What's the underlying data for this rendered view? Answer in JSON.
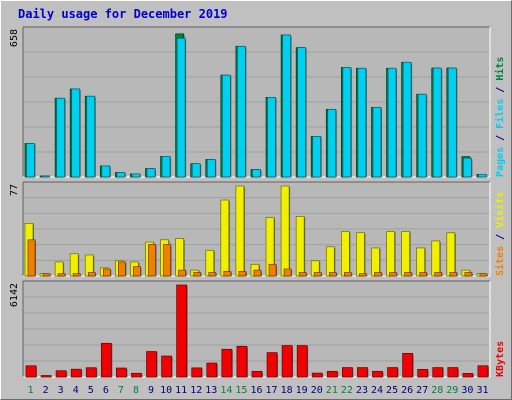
{
  "chart_data": [
    {
      "type": "bar",
      "title": "Daily usage for December 2019",
      "panel": "pages-files-hits",
      "ymax_label": "658",
      "ylim": [
        0,
        658
      ],
      "grid": true,
      "categories": [
        "1",
        "2",
        "3",
        "4",
        "5",
        "6",
        "7",
        "8",
        "9",
        "10",
        "11",
        "12",
        "13",
        "14",
        "15",
        "16",
        "17",
        "18",
        "19",
        "20",
        "21",
        "22",
        "23",
        "24",
        "25",
        "26",
        "27",
        "28",
        "29",
        "30",
        "31"
      ],
      "legend": [
        "Pages",
        "Files",
        "Hits"
      ],
      "legend_separator": " / ",
      "series": [
        {
          "name": "Hits",
          "color": "#008040",
          "values": [
            151,
            5,
            355,
            397,
            364,
            50,
            20,
            14,
            38,
            93,
            645,
            60,
            79,
            459,
            589,
            34,
            359,
            640,
            583,
            183,
            305,
            494,
            490,
            314,
            490,
            517,
            373,
            491,
            491,
            92,
            12
          ]
        },
        {
          "name": "Files",
          "color": "#00d0f0",
          "values": [
            151,
            5,
            355,
            397,
            364,
            50,
            20,
            14,
            38,
            93,
            625,
            60,
            79,
            459,
            589,
            34,
            359,
            640,
            583,
            183,
            305,
            494,
            490,
            314,
            490,
            517,
            373,
            491,
            491,
            85,
            12
          ]
        },
        {
          "name": "Pages",
          "color": "#00d0f0",
          "values": [
            0,
            0,
            0,
            0,
            0,
            0,
            0,
            0,
            0,
            0,
            0,
            0,
            0,
            0,
            0,
            0,
            0,
            0,
            0,
            0,
            0,
            0,
            0,
            0,
            0,
            0,
            0,
            0,
            0,
            0,
            0
          ]
        }
      ]
    },
    {
      "type": "bar",
      "panel": "sites-visits",
      "ymax_label": "77",
      "ylim": [
        0,
        77
      ],
      "grid": true,
      "legend": [
        "Sites",
        "Visits"
      ],
      "legend_separator": " / ",
      "series": [
        {
          "name": "Visits",
          "color": "#f0f000",
          "values": [
            45,
            2,
            12,
            19,
            18,
            7,
            13,
            12,
            29,
            31,
            32,
            5,
            22,
            65,
            77,
            10,
            50,
            77,
            51,
            13,
            25,
            38,
            37,
            24,
            38,
            38,
            24,
            30,
            37,
            5,
            2
          ]
        },
        {
          "name": "Sites",
          "color": "#f08000",
          "values": [
            31,
            2,
            2,
            2,
            3,
            6,
            12,
            8,
            27,
            27,
            5,
            3,
            3,
            4,
            4,
            5,
            10,
            6,
            3,
            3,
            3,
            3,
            2,
            3,
            3,
            3,
            3,
            3,
            3,
            3,
            2
          ]
        }
      ]
    },
    {
      "type": "bar",
      "panel": "kbytes",
      "ymax_label": "6142",
      "ylim": [
        0,
        6142
      ],
      "grid": true,
      "legend": [
        "KBytes"
      ],
      "series": [
        {
          "name": "KBytes",
          "color": "#f00000",
          "values": [
            750,
            100,
            420,
            520,
            620,
            2250,
            600,
            250,
            1700,
            1400,
            6142,
            610,
            930,
            1850,
            2050,
            380,
            1630,
            2100,
            2100,
            260,
            380,
            630,
            630,
            380,
            630,
            1580,
            510,
            630,
            630,
            240,
            750
          ]
        }
      ]
    }
  ],
  "x_labels": [
    "1",
    "2",
    "3",
    "4",
    "5",
    "6",
    "7",
    "8",
    "9",
    "10",
    "11",
    "12",
    "13",
    "14",
    "15",
    "16",
    "17",
    "18",
    "19",
    "20",
    "21",
    "22",
    "23",
    "24",
    "25",
    "26",
    "27",
    "28",
    "29",
    "30",
    "31"
  ],
  "weekend_days": [
    "1",
    "7",
    "8",
    "14",
    "15",
    "21",
    "22",
    "28",
    "29"
  ],
  "colors": {
    "title": "#0000cc",
    "panel_bg": "#c0c0c0",
    "plot_bg": "#b8b8b8",
    "grid": "#a0a0a0",
    "weekday_label": "#000080",
    "weekend_label": "#008040",
    "hits": "#008040",
    "files": "#00d0f0",
    "pages": "#00d0f0",
    "visits": "#f0f000",
    "sites": "#f08000",
    "kbytes": "#f00000"
  }
}
